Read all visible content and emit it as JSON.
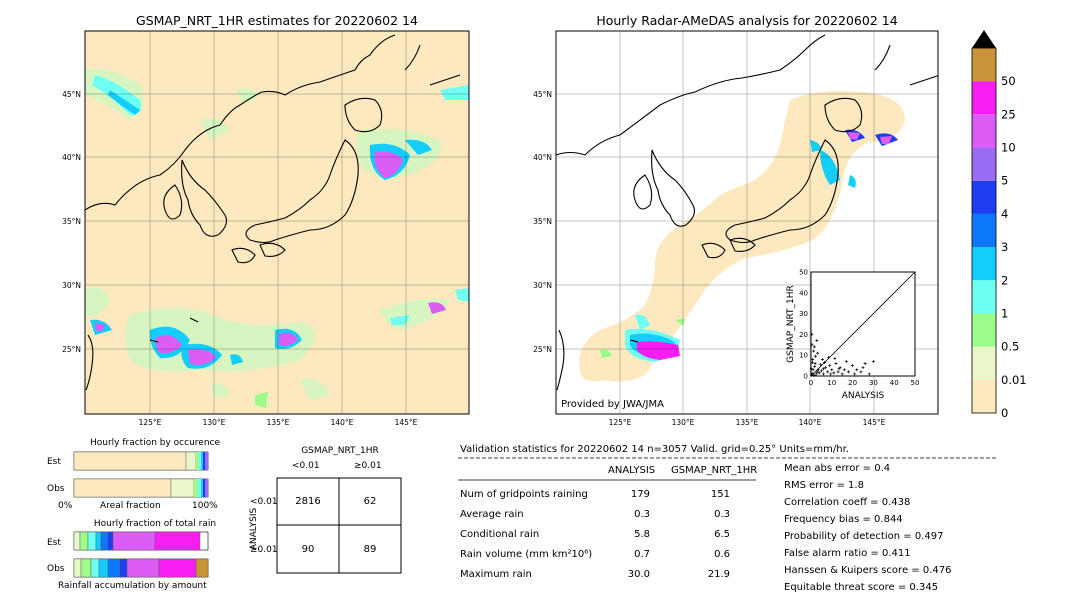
{
  "left_map": {
    "title": "GSMAP_NRT_1HR estimates for 20220602 14",
    "lat_labels": [
      "45°N",
      "40°N",
      "35°N",
      "30°N",
      "25°N"
    ],
    "lon_labels": [
      "125°E",
      "130°E",
      "135°E",
      "140°E",
      "145°E"
    ]
  },
  "right_map": {
    "title": "Hourly Radar-AMeDAS analysis for 20220602 14",
    "lat_labels": [
      "45°N",
      "40°N",
      "35°N",
      "30°N",
      "25°N"
    ],
    "lon_labels": [
      "125°E",
      "130°E",
      "135°E",
      "140°E",
      "145°E"
    ],
    "credit": "Provided by JWA/JMA"
  },
  "scatter": {
    "type": "scatter",
    "xlabel": "ANALYSIS",
    "ylabel": "GSMAP_NRT_1HR",
    "xlim": [
      0,
      50
    ],
    "ylim": [
      0,
      50
    ],
    "ticks": [
      "0",
      "10",
      "20",
      "30",
      "40",
      "50"
    ],
    "points": [
      [
        0.3,
        0.5
      ],
      [
        0.6,
        1.2
      ],
      [
        1,
        3
      ],
      [
        1.5,
        0.4
      ],
      [
        2,
        6
      ],
      [
        2.5,
        1
      ],
      [
        3,
        2
      ],
      [
        0.8,
        8
      ],
      [
        1.2,
        12
      ],
      [
        0.5,
        15
      ],
      [
        0.4,
        20
      ],
      [
        1.8,
        4.5
      ],
      [
        3.5,
        3
      ],
      [
        4,
        1.5
      ],
      [
        5,
        2.5
      ],
      [
        6,
        1
      ],
      [
        7,
        4
      ],
      [
        8,
        2
      ],
      [
        9,
        5
      ],
      [
        10,
        3
      ],
      [
        11,
        1.5
      ],
      [
        12,
        6
      ],
      [
        13,
        2
      ],
      [
        14,
        4
      ],
      [
        15,
        1
      ],
      [
        16,
        3
      ],
      [
        17,
        7
      ],
      [
        18,
        2
      ],
      [
        20,
        5
      ],
      [
        21,
        1
      ],
      [
        22,
        3
      ],
      [
        24,
        2
      ],
      [
        25,
        4
      ],
      [
        26,
        6
      ],
      [
        28,
        1
      ],
      [
        30,
        7
      ],
      [
        4.5,
        5.5
      ],
      [
        5.5,
        8
      ],
      [
        2.2,
        9.5
      ],
      [
        3.2,
        11
      ],
      [
        6.5,
        6.5
      ],
      [
        8.5,
        9
      ],
      [
        1.6,
        14
      ],
      [
        2.8,
        17
      ],
      [
        0.2,
        3.5
      ],
      [
        0.7,
        6.5
      ],
      [
        9.5,
        1
      ],
      [
        11.5,
        8.5
      ],
      [
        13.5,
        3.5
      ],
      [
        6,
        3.5
      ]
    ]
  },
  "colorbar": {
    "labels": [
      "0",
      "0.01",
      "0.5",
      "1",
      "2",
      "3",
      "4",
      "5",
      "10",
      "25",
      "50"
    ],
    "colors": [
      "#fde9bf",
      "#eaf7c8",
      "#9dfb8a",
      "#6ffff3",
      "#15cdfb",
      "#0d78fb",
      "#1e3cf0",
      "#9a6cf6",
      "#dc5cf6",
      "#f81ef2",
      "#c99338"
    ],
    "extend_color": "#000000"
  },
  "occurrence": {
    "title": "Hourly fraction by occurence",
    "row_labels": [
      "Est",
      "Obs"
    ],
    "axis_left": "0%",
    "axis_mid": "Areal fraction",
    "axis_right": "100%"
  },
  "total_rain": {
    "title": "Hourly fraction of total rain",
    "row_labels": [
      "Est",
      "Obs"
    ],
    "caption": "Rainfall accumulation by amount"
  },
  "contingency": {
    "title": "GSMAP_NRT_1HR",
    "col_labels": [
      "<0.01",
      "≥0.01"
    ],
    "side_label": "ANALYSIS",
    "row_labels": [
      "<0.01",
      "≥0.01"
    ],
    "cells": [
      [
        "2816",
        "62"
      ],
      [
        "90",
        "89"
      ]
    ]
  },
  "validation": {
    "header": "Validation statistics for 20220602 14  n=3057 Valid. grid=0.25° Units=mm/hr.",
    "col_headers": [
      "ANALYSIS",
      "GSMAP_NRT_1HR"
    ],
    "rows": [
      {
        "label": "Num of gridpoints raining",
        "a": "179",
        "g": "151"
      },
      {
        "label": "Average rain",
        "a": "0.3",
        "g": "0.3"
      },
      {
        "label": "Conditional rain",
        "a": "5.8",
        "g": "6.5"
      },
      {
        "label": "Rain volume (mm km²10⁶)",
        "a": "0.7",
        "g": "0.6"
      },
      {
        "label": "Maximum rain",
        "a": "30.0",
        "g": "21.9"
      }
    ],
    "scores": [
      "Mean abs error =    0.4",
      "RMS error =    1.8",
      "Correlation coeff =  0.438",
      "Frequency bias =  0.844",
      "Probability of detection =  0.497",
      "False alarm ratio =  0.411",
      "Hanssen & Kuipers score =  0.476",
      "Equitable threat score =  0.345"
    ]
  }
}
